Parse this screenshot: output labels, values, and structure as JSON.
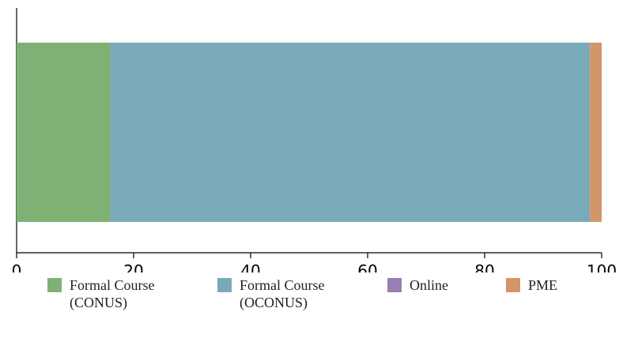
{
  "chart_data": {
    "type": "stacked-bar-horizontal",
    "series": [
      {
        "name": "Formal Course (CONUS)",
        "color": "#7fb174",
        "values": [
          16
        ]
      },
      {
        "name": "Formal Course (OCONUS)",
        "color": "#7aa9ba",
        "values": [
          82
        ]
      },
      {
        "name": "Online",
        "color": "#9a7db1",
        "values": [
          0
        ]
      },
      {
        "name": "PME",
        "color": "#d4956a",
        "values": [
          2
        ]
      }
    ],
    "xlim": [
      0,
      100
    ],
    "xticks": [
      0,
      20,
      40,
      60,
      80,
      100
    ],
    "legend": "bottom"
  }
}
